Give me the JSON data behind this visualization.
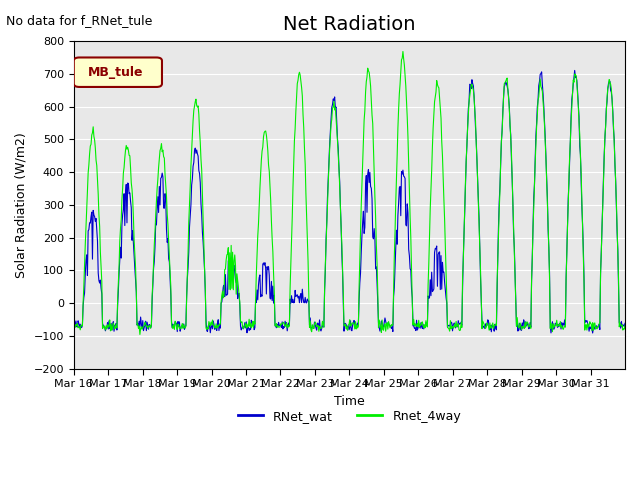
{
  "title": "Net Radiation",
  "ylabel": "Solar Radiation (W/m2)",
  "xlabel": "Time",
  "annotation": "No data for f_RNet_tule",
  "legend_box_label": "MB_tule",
  "ylim": [
    -200,
    800
  ],
  "yticks": [
    -200,
    -100,
    0,
    100,
    200,
    300,
    400,
    500,
    600,
    700,
    800
  ],
  "line1_label": "RNet_wat",
  "line1_color": "#0000cc",
  "line2_label": "Rnet_4way",
  "line2_color": "#00ee00",
  "bg_color": "#e8e8e8",
  "fig_bg": "#ffffff",
  "x_tick_labels": [
    "Mar 16",
    "Mar 17",
    "Mar 18",
    "Mar 19",
    "Mar 20",
    "Mar 21",
    "Mar 22",
    "Mar 23",
    "Mar 24",
    "Mar 25",
    "Mar 26",
    "Mar 27",
    "Mar 28",
    "Mar 29",
    "Mar 30",
    "Mar 31"
  ],
  "n_days": 16,
  "start_day": 16,
  "font_size": 11,
  "title_font_size": 14
}
